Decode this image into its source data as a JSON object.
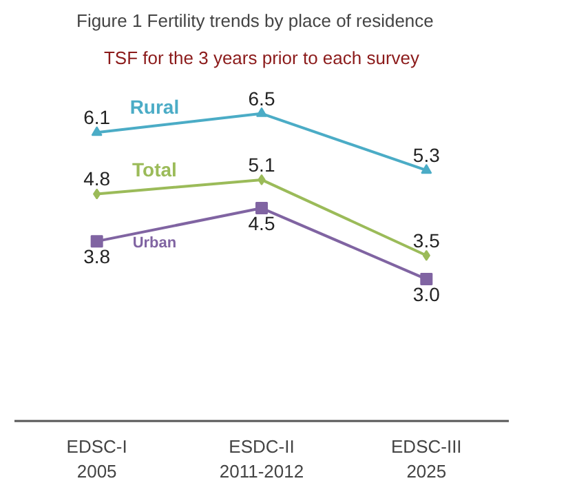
{
  "chart_data": {
    "type": "line",
    "title": "Figure 1 Fertility trends by place of residence",
    "subtitle": "TSF for the 3 years prior to each survey",
    "categories": [
      "EDSC-I\n2005",
      "ESDC-II\n2011-2012",
      "EDSC-III\n2025"
    ],
    "series": [
      {
        "name": "Rural",
        "color": "#4bacc6",
        "values": [
          6.1,
          6.5,
          5.3
        ],
        "value_labels": [
          "6.1",
          "6.5",
          "5.3"
        ],
        "marker": "triangle"
      },
      {
        "name": "Total",
        "color": "#9bbb59",
        "values": [
          4.8,
          5.1,
          3.5
        ],
        "value_labels": [
          "4.8",
          "5.1",
          "3.5"
        ],
        "marker": "diamond"
      },
      {
        "name": "Urban",
        "color": "#8064a2",
        "values": [
          3.8,
          4.5,
          3.0
        ],
        "value_labels": [
          "3.8",
          "4.5",
          "3.0"
        ],
        "marker": "square"
      }
    ],
    "grid": false,
    "tick_labels": "x"
  }
}
